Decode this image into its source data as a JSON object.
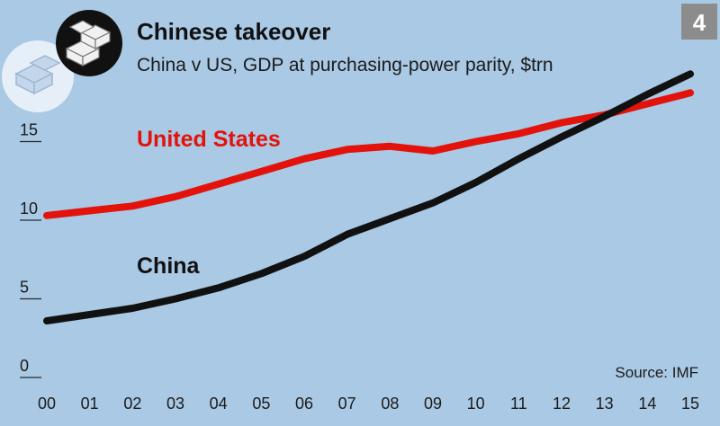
{
  "header": {
    "title": "Chinese takeover",
    "subtitle": "China v US, GDP at purchasing-power parity, $trn",
    "badge": "4"
  },
  "source": "Source: IMF",
  "colors": {
    "background": "#a9c9e5",
    "united_states": "#e3120b",
    "china": "#111111",
    "badge": "#8c8c8c"
  },
  "icons": [
    "stacked-blocks-logo-icon",
    "faded-blocks-icon"
  ],
  "chart_data": {
    "type": "line",
    "title": "Chinese takeover",
    "subtitle": "China v US, GDP at purchasing-power parity, $trn",
    "xlabel": "",
    "ylabel": "",
    "x": [
      "00",
      "01",
      "02",
      "03",
      "04",
      "05",
      "06",
      "07",
      "08",
      "09",
      "10",
      "11",
      "12",
      "13",
      "14",
      "15"
    ],
    "xlim": [
      "00",
      "15"
    ],
    "ylim": [
      0,
      20
    ],
    "yticks": [
      "0",
      "5",
      "10",
      "15"
    ],
    "grid": false,
    "series": [
      {
        "name": "United States",
        "color": "#e3120b",
        "values": [
          10.3,
          10.6,
          10.9,
          11.5,
          12.3,
          13.1,
          13.9,
          14.5,
          14.7,
          14.4,
          15.0,
          15.5,
          16.2,
          16.7,
          17.4,
          18.1
        ]
      },
      {
        "name": "China",
        "color": "#111111",
        "values": [
          3.6,
          4.0,
          4.4,
          5.0,
          5.7,
          6.6,
          7.7,
          9.1,
          10.1,
          11.1,
          12.4,
          13.9,
          15.3,
          16.6,
          18.0,
          19.3
        ]
      }
    ]
  }
}
